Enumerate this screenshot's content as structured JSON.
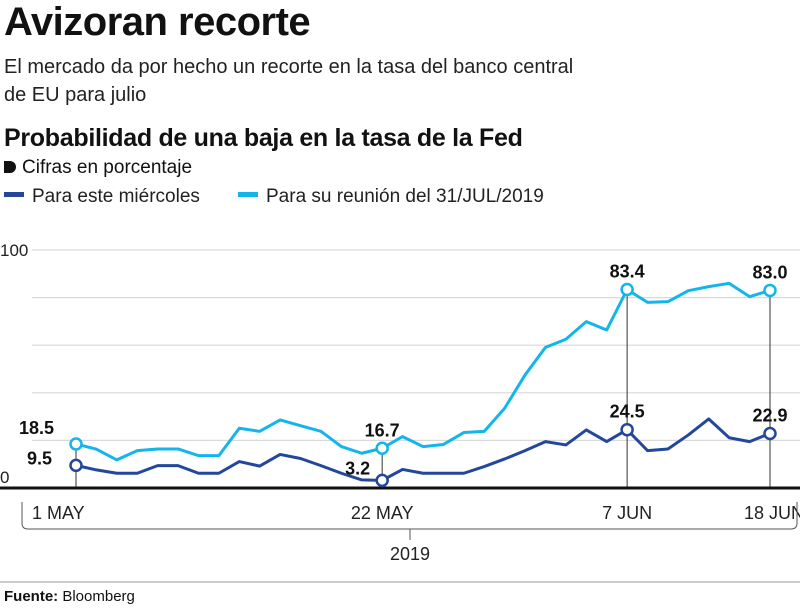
{
  "header": {
    "title": "Avizoran recorte",
    "subtitle_line1": "El mercado da por hecho un recorte en la tasa del banco central",
    "subtitle_line2": "de EU para julio",
    "chart_heading": "Probabilidad de una baja en la tasa de la Fed",
    "unit_note": "Cifras en porcentaje"
  },
  "colors": {
    "dark_blue": "#23479b",
    "light_blue": "#13b5ea",
    "grid": "#d9d9d9",
    "axis": "#111111"
  },
  "chart_data": {
    "type": "line",
    "title": "Probabilidad de una baja en la tasa de la Fed",
    "ylabel": "Cifras en porcentaje",
    "ylim": [
      0,
      100
    ],
    "y_gridlines": [
      0,
      20,
      40,
      60,
      80,
      100
    ],
    "y_tick_labels": [
      "0",
      "100"
    ],
    "grid": true,
    "legend_placement": "top-left",
    "x": [
      "2019-05-01",
      "2019-05-02",
      "2019-05-03",
      "2019-05-06",
      "2019-05-07",
      "2019-05-08",
      "2019-05-09",
      "2019-05-10",
      "2019-05-13",
      "2019-05-14",
      "2019-05-15",
      "2019-05-16",
      "2019-05-17",
      "2019-05-20",
      "2019-05-21",
      "2019-05-22",
      "2019-05-23",
      "2019-05-24",
      "2019-05-27",
      "2019-05-28",
      "2019-05-29",
      "2019-05-30",
      "2019-05-31",
      "2019-06-03",
      "2019-06-04",
      "2019-06-05",
      "2019-06-06",
      "2019-06-07",
      "2019-06-10",
      "2019-06-11",
      "2019-06-12",
      "2019-06-13",
      "2019-06-14",
      "2019-06-17",
      "2019-06-18"
    ],
    "x_tick_labels": [
      {
        "date": "2019-05-01",
        "label": "1 MAY"
      },
      {
        "date": "2019-05-22",
        "label": "22 MAY"
      },
      {
        "date": "2019-06-07",
        "label": "7 JUN"
      },
      {
        "date": "2019-06-18",
        "label": "18 JUN"
      }
    ],
    "x_year_label": "2019",
    "series": [
      {
        "name": "Para este miércoles",
        "color": "#23479b",
        "values": [
          9.5,
          7.6,
          6.2,
          6.2,
          9.4,
          9.4,
          6.2,
          6.2,
          11.1,
          9.2,
          14.1,
          12.4,
          9.4,
          6.2,
          3.4,
          3.2,
          7.8,
          6.2,
          6.2,
          6.2,
          9.0,
          12.2,
          15.7,
          19.5,
          18.1,
          24.4,
          19.5,
          24.5,
          15.7,
          16.4,
          22.3,
          29.0,
          21.1,
          19.5,
          22.9
        ],
        "annotations": [
          {
            "date": "2019-05-01",
            "label": "9.5"
          },
          {
            "date": "2019-05-22",
            "label": "3.2"
          },
          {
            "date": "2019-06-07",
            "label": "24.5"
          },
          {
            "date": "2019-06-18",
            "label": "22.9"
          }
        ]
      },
      {
        "name": "Para su reunión del 31/JUL/2019",
        "color": "#13b5ea",
        "values": [
          18.5,
          16.3,
          11.8,
          15.7,
          16.4,
          16.4,
          13.6,
          13.6,
          25.1,
          23.8,
          28.6,
          26.2,
          23.8,
          17.4,
          14.6,
          16.7,
          21.6,
          17.4,
          18.3,
          23.3,
          23.8,
          33.5,
          47.5,
          59.1,
          62.5,
          69.9,
          66.4,
          83.4,
          78.0,
          78.3,
          82.9,
          84.6,
          86.0,
          80.4,
          83.0
        ],
        "annotations": [
          {
            "date": "2019-05-01",
            "label": "18.5"
          },
          {
            "date": "2019-05-22",
            "label": "16.7"
          },
          {
            "date": "2019-06-07",
            "label": "83.4"
          },
          {
            "date": "2019-06-18",
            "label": "83.0"
          }
        ]
      }
    ]
  },
  "footer": {
    "source_label": "Fuente:",
    "source_value": "Bloomberg"
  }
}
